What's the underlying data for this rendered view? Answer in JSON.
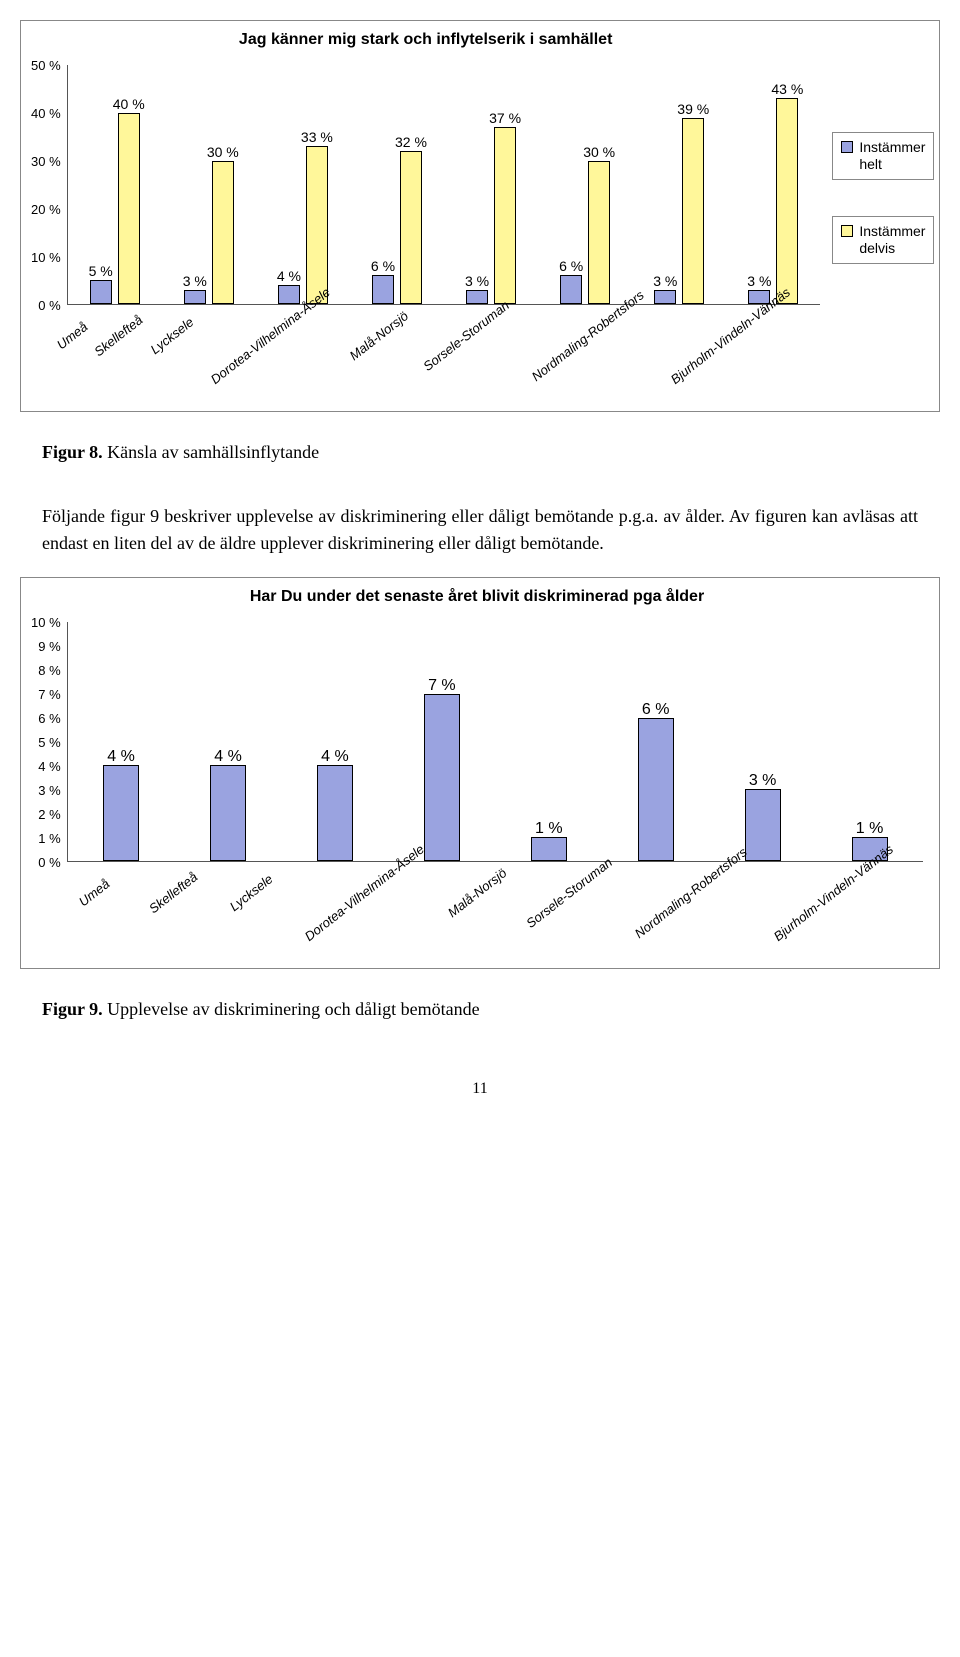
{
  "chart1": {
    "type": "bar",
    "title": "Jag känner mig stark och inflytelserik i samhället",
    "title_fontsize": 16,
    "y_max": 50,
    "y_step": 10,
    "y_suffix": " %",
    "categories": [
      "Umeå",
      "Skellefteå",
      "Lycksele",
      "Dorotea-Vilhelmina-Åsele",
      "Malå-Norsjö",
      "Sorsele-Storuman",
      "Nordmaling-Robertsfors",
      "Bjurholm-Vindeln-Vännäs"
    ],
    "series": [
      {
        "name": "Instämmer helt",
        "color": "#9aa3e0",
        "border": "#000000",
        "values": [
          5,
          3,
          4,
          6,
          3,
          6,
          3,
          3
        ]
      },
      {
        "name": "Instämmer delvis",
        "color": "#fff79a",
        "border": "#000000",
        "values": [
          40,
          30,
          33,
          32,
          37,
          30,
          39,
          43
        ]
      }
    ],
    "label_fontsize": 14,
    "axis_fontsize": 13,
    "background_color": "#ffffff",
    "axis_color": "#555555"
  },
  "fig8": {
    "label": "Figur 8.",
    "text": "Känsla av samhällsinflytande"
  },
  "para": "Följande figur 9 beskriver upplevelse av diskriminering eller dåligt bemötande p.g.a. av ålder. Av figuren kan avläsas att endast en liten del av de äldre upplever diskriminering eller dåligt bemötande.",
  "chart2": {
    "type": "bar",
    "title": "Har Du under det senaste året blivit diskriminerad pga ålder",
    "title_fontsize": 16,
    "y_max": 10,
    "y_step": 1,
    "y_suffix": " %",
    "categories": [
      "Umeå",
      "Skellefteå",
      "Lycksele",
      "Dorotea-Vilhelmina-Åsele",
      "Malå-Norsjö",
      "Sorsele-Storuman",
      "Nordmaling-Robertsfors",
      "Bjurholm-Vindeln-Vännäs"
    ],
    "series": [
      {
        "name": "",
        "color": "#9aa3e0",
        "border": "#000000",
        "values": [
          4,
          4,
          4,
          7,
          1,
          6,
          3,
          1
        ]
      }
    ],
    "label_fontsize": 16,
    "axis_fontsize": 13,
    "background_color": "#ffffff",
    "axis_color": "#555555"
  },
  "fig9": {
    "label": "Figur 9.",
    "text": "Upplevelse av diskriminering och dåligt bemötande"
  },
  "page_number": "11"
}
